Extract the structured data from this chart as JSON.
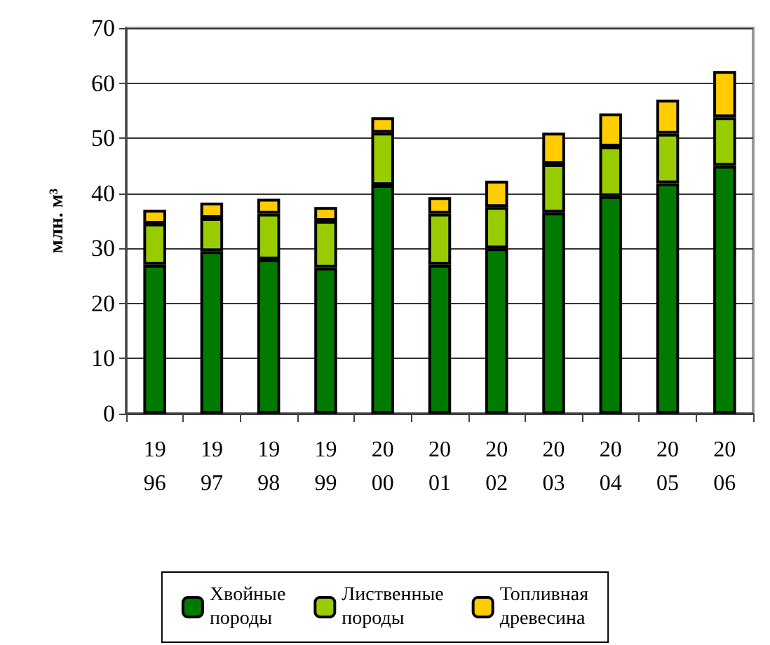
{
  "chart_data": {
    "type": "bar",
    "stacked": true,
    "ylabel": "млн. м³",
    "categories": [
      "1996",
      "1997",
      "1998",
      "1999",
      "2000",
      "2001",
      "2002",
      "2003",
      "2004",
      "2005",
      "2006"
    ],
    "series": [
      {
        "name": "Хвойные породы",
        "color": "#007a00",
        "values": [
          27,
          29.5,
          28,
          26.5,
          41.5,
          27,
          30,
          36.5,
          39.5,
          41.8,
          45
        ]
      },
      {
        "name": "Лиственные породы",
        "color": "#99cc00",
        "values": [
          7.5,
          6,
          8.3,
          8.5,
          9.5,
          9.3,
          7.5,
          8.8,
          9,
          9,
          8.8
        ]
      },
      {
        "name": "Топливная древесина",
        "color": "#ffcc00",
        "values": [
          2.5,
          2.8,
          2.7,
          2.5,
          2.8,
          3,
          4.8,
          5.7,
          6,
          6.2,
          8.4
        ]
      }
    ],
    "ylim": [
      0,
      70
    ],
    "yticks": [
      0,
      10,
      20,
      30,
      40,
      50,
      60,
      70
    ],
    "grid": "y",
    "legend": "bottom"
  }
}
